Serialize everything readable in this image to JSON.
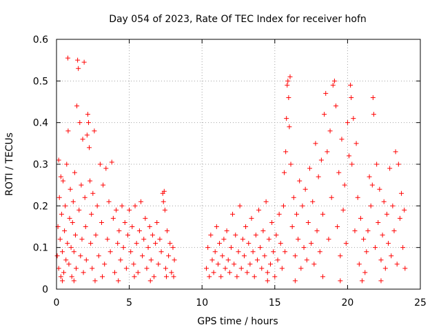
{
  "chart_data": {
    "type": "scatter",
    "title": "Day 054 of 2023, Rate Of TEC Index for receiver hofn",
    "xlabel": "GPS time / hours",
    "ylabel": "ROTI / TECUs",
    "xlim": [
      0,
      25
    ],
    "ylim": [
      0,
      0.6
    ],
    "xticks": [
      0,
      5,
      10,
      15,
      20,
      25
    ],
    "xtick_labels": [
      "0",
      "5",
      "10",
      "15",
      "20",
      "25"
    ],
    "yticks": [
      0,
      0.1,
      0.2,
      0.3,
      0.4,
      0.5,
      0.6
    ],
    "ytick_labels": [
      "0",
      "0.1",
      "0.2",
      "0.3",
      "0.4",
      "0.5",
      "0.6"
    ],
    "grid": true,
    "marker": "+",
    "color": "#ff0000",
    "legend": "none",
    "series": [
      {
        "points": [
          [
            0.05,
            0.08
          ],
          [
            0.1,
            0.15
          ],
          [
            0.15,
            0.05
          ],
          [
            0.2,
            0.22
          ],
          [
            0.25,
            0.12
          ],
          [
            0.3,
            0.03
          ],
          [
            0.35,
            0.18
          ],
          [
            0.4,
            0.09
          ],
          [
            0.45,
            0.26
          ],
          [
            0.5,
            0.04
          ],
          [
            0.55,
            0.14
          ],
          [
            0.6,
            0.2
          ],
          [
            0.65,
            0.07
          ],
          [
            0.7,
            0.3
          ],
          [
            0.75,
            0.11
          ],
          [
            0.8,
            0.38
          ],
          [
            0.85,
            0.06
          ],
          [
            0.9,
            0.17
          ],
          [
            0.95,
            0.24
          ],
          [
            1.0,
            0.1
          ],
          [
            0.15,
            0.31
          ],
          [
            0.3,
            0.27
          ],
          [
            0.78,
            0.555
          ],
          [
            1.05,
            0.03
          ],
          [
            1.1,
            0.16
          ],
          [
            1.15,
            0.21
          ],
          [
            1.2,
            0.09
          ],
          [
            1.25,
            0.28
          ],
          [
            1.3,
            0.13
          ],
          [
            1.35,
            0.05
          ],
          [
            1.4,
            0.44
          ],
          [
            1.45,
            0.55
          ],
          [
            1.5,
            0.53
          ],
          [
            1.55,
            0.19
          ],
          [
            1.6,
            0.4
          ],
          [
            1.65,
            0.08
          ],
          [
            1.7,
            0.25
          ],
          [
            1.75,
            0.12
          ],
          [
            1.8,
            0.36
          ],
          [
            1.85,
            0.04
          ],
          [
            1.9,
            0.545
          ],
          [
            1.95,
            0.22
          ],
          [
            2.0,
            0.15
          ],
          [
            2.05,
            0.07
          ],
          [
            2.1,
            0.37
          ],
          [
            2.15,
            0.42
          ],
          [
            2.2,
            0.4
          ],
          [
            2.25,
            0.34
          ],
          [
            2.3,
            0.26
          ],
          [
            2.35,
            0.11
          ],
          [
            2.4,
            0.18
          ],
          [
            2.45,
            0.05
          ],
          [
            2.5,
            0.23
          ],
          [
            2.6,
            0.38
          ],
          [
            2.7,
            0.13
          ],
          [
            2.8,
            0.2
          ],
          [
            2.9,
            0.08
          ],
          [
            3.0,
            0.3
          ],
          [
            3.1,
            0.16
          ],
          [
            3.2,
            0.25
          ],
          [
            3.3,
            0.06
          ],
          [
            3.4,
            0.29
          ],
          [
            3.5,
            0.12
          ],
          [
            3.6,
            0.21
          ],
          [
            3.7,
            0.09
          ],
          [
            3.8,
            0.305
          ],
          [
            3.9,
            0.17
          ],
          [
            4.0,
            0.04
          ],
          [
            4.1,
            0.19
          ],
          [
            4.2,
            0.11
          ],
          [
            4.3,
            0.14
          ],
          [
            4.4,
            0.07
          ],
          [
            4.5,
            0.2
          ],
          [
            4.6,
            0.1
          ],
          [
            4.7,
            0.16
          ],
          [
            4.8,
            0.05
          ],
          [
            4.9,
            0.13
          ],
          [
            5.0,
            0.19
          ],
          [
            5.1,
            0.09
          ],
          [
            5.2,
            0.15
          ],
          [
            5.3,
            0.06
          ],
          [
            5.4,
            0.2
          ],
          [
            5.5,
            0.11
          ],
          [
            5.6,
            0.04
          ],
          [
            5.7,
            0.14
          ],
          [
            5.8,
            0.21
          ],
          [
            5.9,
            0.08
          ],
          [
            6.0,
            0.12
          ],
          [
            6.1,
            0.17
          ],
          [
            6.2,
            0.05
          ],
          [
            6.3,
            0.1
          ],
          [
            6.4,
            0.15
          ],
          [
            6.5,
            0.07
          ],
          [
            6.6,
            0.13
          ],
          [
            6.7,
            0.03
          ],
          [
            6.8,
            0.11
          ],
          [
            6.9,
            0.16
          ],
          [
            7.0,
            0.06
          ],
          [
            7.1,
            0.12
          ],
          [
            7.2,
            0.09
          ],
          [
            7.3,
            0.23
          ],
          [
            7.35,
            0.21
          ],
          [
            7.4,
            0.235
          ],
          [
            7.45,
            0.19
          ],
          [
            7.5,
            0.05
          ],
          [
            7.6,
            0.14
          ],
          [
            7.7,
            0.08
          ],
          [
            7.8,
            0.11
          ],
          [
            7.9,
            0.04
          ],
          [
            8.0,
            0.1
          ],
          [
            8.1,
            0.07
          ],
          [
            2.65,
            0.02
          ],
          [
            3.15,
            0.03
          ],
          [
            4.25,
            0.02
          ],
          [
            5.35,
            0.03
          ],
          [
            6.45,
            0.02
          ],
          [
            7.55,
            0.03
          ],
          [
            0.4,
            0.02
          ],
          [
            1.2,
            0.02
          ],
          [
            8.05,
            0.03
          ],
          [
            10.3,
            0.05
          ],
          [
            10.4,
            0.1
          ],
          [
            10.5,
            0.03
          ],
          [
            10.6,
            0.13
          ],
          [
            10.7,
            0.07
          ],
          [
            10.8,
            0.04
          ],
          [
            10.9,
            0.09
          ],
          [
            11.0,
            0.15
          ],
          [
            11.1,
            0.06
          ],
          [
            11.2,
            0.11
          ],
          [
            11.3,
            0.03
          ],
          [
            11.4,
            0.08
          ],
          [
            11.5,
            0.12
          ],
          [
            11.6,
            0.05
          ],
          [
            11.7,
            0.14
          ],
          [
            11.8,
            0.07
          ],
          [
            11.9,
            0.04
          ],
          [
            12.0,
            0.1
          ],
          [
            12.1,
            0.18
          ],
          [
            12.2,
            0.06
          ],
          [
            12.3,
            0.13
          ],
          [
            12.4,
            0.03
          ],
          [
            12.5,
            0.09
          ],
          [
            12.6,
            0.2
          ],
          [
            12.7,
            0.05
          ],
          [
            12.8,
            0.12
          ],
          [
            12.9,
            0.08
          ],
          [
            13.0,
            0.15
          ],
          [
            13.1,
            0.04
          ],
          [
            13.2,
            0.11
          ],
          [
            13.3,
            0.06
          ],
          [
            13.4,
            0.17
          ],
          [
            13.5,
            0.09
          ],
          [
            13.6,
            0.03
          ],
          [
            13.7,
            0.13
          ],
          [
            13.8,
            0.07
          ],
          [
            13.9,
            0.19
          ],
          [
            14.0,
            0.1
          ],
          [
            14.1,
            0.05
          ],
          [
            14.2,
            0.14
          ],
          [
            14.3,
            0.08
          ],
          [
            14.4,
            0.21
          ],
          [
            14.5,
            0.04
          ],
          [
            14.6,
            0.12
          ],
          [
            14.7,
            0.06
          ],
          [
            14.8,
            0.16
          ],
          [
            14.9,
            0.09
          ],
          [
            15.0,
            0.03
          ],
          [
            15.1,
            0.13
          ],
          [
            15.2,
            0.07
          ],
          [
            15.3,
            0.18
          ],
          [
            15.4,
            0.11
          ],
          [
            15.5,
            0.05
          ],
          [
            15.6,
            0.2
          ],
          [
            15.65,
            0.28
          ],
          [
            15.7,
            0.09
          ],
          [
            15.75,
            0.33
          ],
          [
            15.8,
            0.41
          ],
          [
            15.85,
            0.49
          ],
          [
            15.9,
            0.5
          ],
          [
            15.95,
            0.46
          ],
          [
            16.0,
            0.39
          ],
          [
            16.05,
            0.51
          ],
          [
            16.1,
            0.3
          ],
          [
            16.2,
            0.15
          ],
          [
            16.3,
            0.22
          ],
          [
            16.4,
            0.08
          ],
          [
            16.5,
            0.18
          ],
          [
            16.6,
            0.12
          ],
          [
            16.7,
            0.26
          ],
          [
            16.8,
            0.05
          ],
          [
            16.9,
            0.2
          ],
          [
            17.0,
            0.1
          ],
          [
            17.1,
            0.24
          ],
          [
            17.2,
            0.07
          ],
          [
            17.3,
            0.16
          ],
          [
            17.4,
            0.29
          ],
          [
            17.5,
            0.11
          ],
          [
            17.6,
            0.21
          ],
          [
            17.7,
            0.06
          ],
          [
            17.8,
            0.35
          ],
          [
            17.9,
            0.14
          ],
          [
            18.0,
            0.27
          ],
          [
            18.1,
            0.09
          ],
          [
            18.2,
            0.31
          ],
          [
            18.3,
            0.18
          ],
          [
            18.4,
            0.42
          ],
          [
            18.5,
            0.47
          ],
          [
            18.6,
            0.33
          ],
          [
            18.7,
            0.12
          ],
          [
            18.8,
            0.38
          ],
          [
            18.9,
            0.22
          ],
          [
            19.0,
            0.49
          ],
          [
            19.1,
            0.5
          ],
          [
            19.2,
            0.44
          ],
          [
            19.3,
            0.15
          ],
          [
            19.4,
            0.28
          ],
          [
            19.5,
            0.08
          ],
          [
            19.6,
            0.36
          ],
          [
            19.7,
            0.19
          ],
          [
            19.8,
            0.25
          ],
          [
            19.9,
            0.11
          ],
          [
            20.0,
            0.4
          ],
          [
            20.1,
            0.32
          ],
          [
            20.2,
            0.49
          ],
          [
            20.25,
            0.46
          ],
          [
            20.3,
            0.3
          ],
          [
            20.4,
            0.41
          ],
          [
            20.5,
            0.14
          ],
          [
            20.6,
            0.35
          ],
          [
            20.7,
            0.22
          ],
          [
            20.8,
            0.06
          ],
          [
            20.9,
            0.17
          ],
          [
            21.0,
            0.02
          ],
          [
            21.1,
            0.12
          ],
          [
            21.2,
            0.04
          ],
          [
            21.3,
            0.09
          ],
          [
            21.4,
            0.14
          ],
          [
            21.5,
            0.27
          ],
          [
            21.6,
            0.2
          ],
          [
            21.7,
            0.25
          ],
          [
            21.75,
            0.46
          ],
          [
            21.8,
            0.42
          ],
          [
            21.9,
            0.1
          ],
          [
            22.0,
            0.3
          ],
          [
            22.1,
            0.16
          ],
          [
            22.2,
            0.24
          ],
          [
            22.3,
            0.07
          ],
          [
            22.4,
            0.13
          ],
          [
            22.5,
            0.21
          ],
          [
            22.6,
            0.05
          ],
          [
            22.7,
            0.18
          ],
          [
            22.8,
            0.11
          ],
          [
            22.9,
            0.29
          ],
          [
            23.0,
            0.08
          ],
          [
            23.1,
            0.2
          ],
          [
            23.2,
            0.14
          ],
          [
            23.3,
            0.33
          ],
          [
            23.4,
            0.06
          ],
          [
            23.5,
            0.3
          ],
          [
            23.6,
            0.17
          ],
          [
            23.7,
            0.23
          ],
          [
            23.8,
            0.1
          ],
          [
            23.9,
            0.19
          ],
          [
            23.95,
            0.05
          ],
          [
            14.5,
            0.02
          ],
          [
            16.4,
            0.02
          ],
          [
            18.3,
            0.03
          ],
          [
            19.5,
            0.02
          ],
          [
            22.3,
            0.02
          ]
        ]
      }
    ]
  }
}
